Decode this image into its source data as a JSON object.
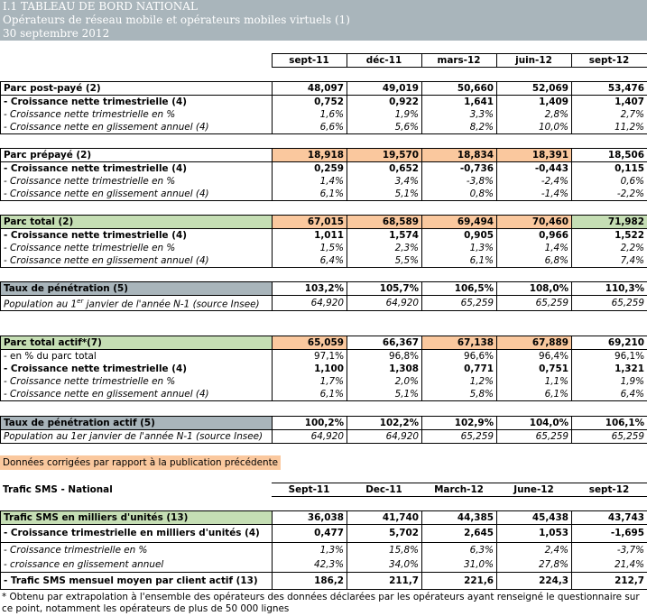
{
  "header": {
    "line1": "I.1 TABLEAU DE BORD NATIONAL",
    "line2": "Opérateurs de réseau mobile et opérateurs mobiles virtuels (1)",
    "line3": "30 septembre 2012"
  },
  "periods": [
    "sept-11",
    "déc-11",
    "mars-12",
    "juin-12",
    "sept-12"
  ],
  "postpaid": {
    "title": "Parc post-payé (2)",
    "values": [
      "48,097",
      "49,019",
      "50,660",
      "52,069",
      "53,476"
    ],
    "rows": [
      {
        "label": "- Croissance nette trimestrielle (4)",
        "values": [
          "0,752",
          "0,922",
          "1,641",
          "1,409",
          "1,407"
        ]
      },
      {
        "label": "- Croissance nette trimestrielle en %",
        "values": [
          "1,6%",
          "1,9%",
          "3,3%",
          "2,8%",
          "2,7%"
        ]
      },
      {
        "label": "- Croissance nette en glissement annuel (4)",
        "values": [
          "6,6%",
          "5,6%",
          "8,2%",
          "10,0%",
          "11,2%"
        ]
      }
    ]
  },
  "prepaid": {
    "title": "Parc prépayé (2)",
    "values": [
      "18,918",
      "19,570",
      "18,834",
      "18,391",
      "18,506"
    ],
    "rows": [
      {
        "label": "- Croissance nette trimestrielle (4)",
        "values": [
          "0,259",
          "0,652",
          "-0,736",
          "-0,443",
          "0,115"
        ]
      },
      {
        "label": "- Croissance nette trimestrielle en %",
        "values": [
          "1,4%",
          "3,4%",
          "-3,8%",
          "-2,4%",
          "0,6%"
        ]
      },
      {
        "label": "- Croissance nette en glissement annuel (4)",
        "values": [
          "6,1%",
          "5,1%",
          "0,8%",
          "-1,4%",
          "-2,2%"
        ]
      }
    ]
  },
  "total": {
    "title": "Parc total (2)",
    "values": [
      "67,015",
      "68,589",
      "69,494",
      "70,460",
      "71,982"
    ],
    "rows": [
      {
        "label": "- Croissance nette trimestrielle (4)",
        "values": [
          "1,011",
          "1,574",
          "0,905",
          "0,966",
          "1,522"
        ]
      },
      {
        "label": "- Croissance nette trimestrielle en %",
        "values": [
          "1,5%",
          "2,3%",
          "1,3%",
          "1,4%",
          "2,2%"
        ]
      },
      {
        "label": "- Croissance nette en glissement annuel (4)",
        "values": [
          "6,4%",
          "5,5%",
          "6,1%",
          "6,8%",
          "7,4%"
        ]
      }
    ]
  },
  "penetration": {
    "title": "Taux de pénétration (5)",
    "values": [
      "103,2%",
      "105,7%",
      "106,5%",
      "108,0%",
      "110,3%"
    ],
    "pop_label_pre": "Population au 1",
    "pop_label_sup": "er",
    "pop_label_post": " janvier de l'année N-1 (source Insee)",
    "pop_values": [
      "64,920",
      "64,920",
      "65,259",
      "65,259",
      "65,259"
    ]
  },
  "active": {
    "title": "Parc total actif*(7)",
    "values": [
      "65,059",
      "66,367",
      "67,138",
      "67,889",
      "69,210"
    ],
    "rows": [
      {
        "label": "- en % du parc total",
        "values": [
          "97,1%",
          "96,8%",
          "96,6%",
          "96,4%",
          "96,1%"
        ],
        "style": "plain"
      },
      {
        "label": "- Croissance nette trimestrielle (4)",
        "values": [
          "1,100",
          "1,308",
          "0,771",
          "0,751",
          "1,321"
        ],
        "style": "bold"
      },
      {
        "label": "- Croissance nette trimestrielle en %",
        "values": [
          "1,7%",
          "2,0%",
          "1,2%",
          "1,1%",
          "1,9%"
        ],
        "style": "ital"
      },
      {
        "label": "- Croissance nette en glissement annuel (4)",
        "values": [
          "6,1%",
          "5,1%",
          "5,8%",
          "6,1%",
          "6,4%"
        ],
        "style": "ital"
      }
    ]
  },
  "active_penetration": {
    "title": "Taux de pénétration actif (5)",
    "values": [
      "100,2%",
      "102,2%",
      "102,9%",
      "104,0%",
      "106,1%"
    ],
    "pop_label": "Population au 1er janvier de l'année N-1 (source Insee)",
    "pop_values": [
      "64,920",
      "64,920",
      "65,259",
      "65,259",
      "65,259"
    ]
  },
  "legend_note": "Données corrigées par rapport à la publication précédente",
  "sms": {
    "section_title": "Trafic SMS - National",
    "periods": [
      "Sept-11",
      "Dec-11",
      "March-12",
      "June-12",
      "sept-12"
    ],
    "title": "Trafic SMS en milliers d'unités (13)",
    "values": [
      "36,038",
      "41,740",
      "44,385",
      "45,438",
      "43,743"
    ],
    "rows": [
      {
        "label": "- Croissance trimestrielle en milliers d'unités (4)",
        "values": [
          "0,477",
          "5,702",
          "2,645",
          "1,053",
          "-1,695"
        ],
        "style": "bold"
      },
      {
        "label": "- Croissance trimestrielle en %",
        "values": [
          "1,3%",
          "15,8%",
          "6,3%",
          "2,4%",
          "-3,7%"
        ],
        "style": "ital"
      },
      {
        "label": "- croissance en glissement annuel",
        "values": [
          "42,3%",
          "34,0%",
          "31,0%",
          "27,8%",
          "21,4%"
        ],
        "style": "ital"
      },
      {
        "label": "- Trafic SMS mensuel moyen par client actif (13)",
        "values": [
          "186,2",
          "211,7",
          "221,6",
          "224,3",
          "212,7"
        ],
        "style": "bold"
      }
    ]
  },
  "footnote": "* Obtenu par extrapolation à l'ensemble des opérateurs des données déclarées par les opérateurs ayant renseigné le questionnaire sur ce point, notamment les opérateurs de plus de 50 000 lignes"
}
